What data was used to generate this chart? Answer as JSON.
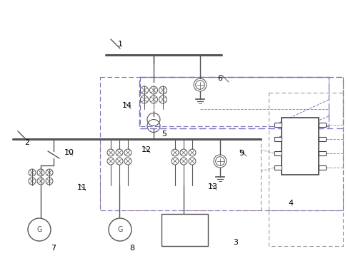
{
  "bg_color": "#ffffff",
  "lc": "#555555",
  "blue_dash": "#7777bb",
  "red_dash": "#cc8877",
  "gray_dash": "#999999",
  "fig_width": 4.87,
  "fig_height": 3.73,
  "dpi": 100
}
